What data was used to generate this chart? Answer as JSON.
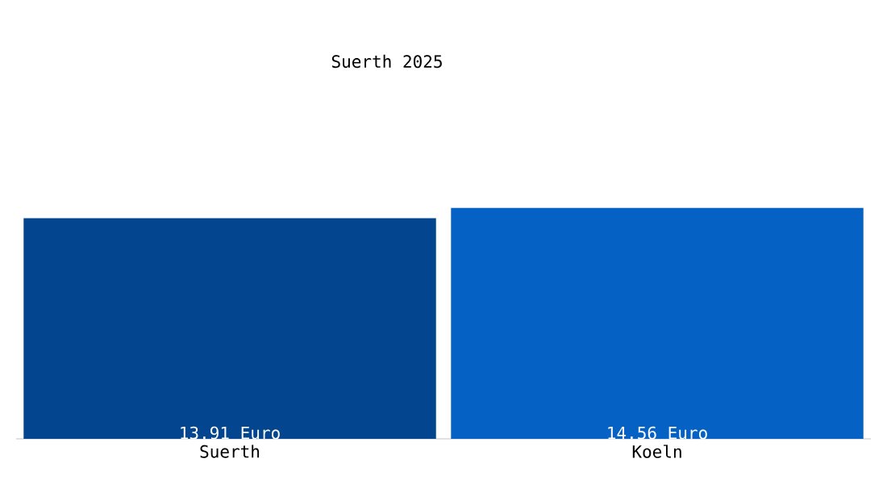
{
  "chart_data": {
    "type": "bar",
    "title": "Suerth 2025",
    "categories": [
      "Suerth",
      "Koeln"
    ],
    "values": [
      13.91,
      14.56
    ],
    "colors": [
      "#03468f",
      "#0562c4"
    ],
    "value_labels": [
      "13.91 Euro",
      "14.56 Euro"
    ]
  }
}
